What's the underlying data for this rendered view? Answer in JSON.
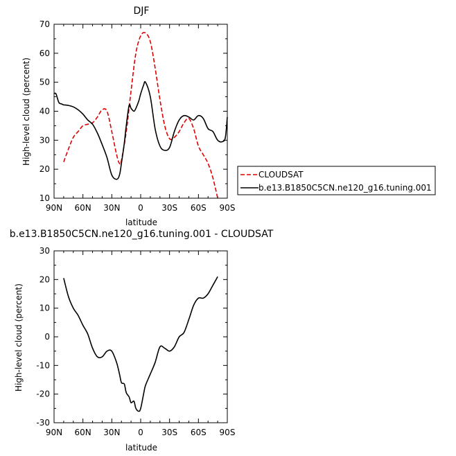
{
  "chart_data": [
    {
      "type": "line",
      "title": "DJF",
      "xlabel": "latitude",
      "ylabel": "High-level cloud (percent)",
      "xlim": [
        -90,
        90
      ],
      "ylim": [
        10,
        70
      ],
      "xticks": [
        -90,
        -60,
        -30,
        0,
        30,
        60,
        90
      ],
      "xtick_labels": [
        "90N",
        "60N",
        "30N",
        "0",
        "30S",
        "60S",
        "90S"
      ],
      "yticks": [
        10,
        20,
        30,
        40,
        50,
        60,
        70
      ],
      "ytick_labels": [
        "10",
        "20",
        "30",
        "40",
        "50",
        "60",
        "70"
      ],
      "grid": false,
      "legend_position": "right",
      "series": [
        {
          "name": "CLOUDSAT",
          "color": "#e00000",
          "dash": "dashed",
          "x": [
            -80,
            -75,
            -70,
            -65,
            -60,
            -55,
            -50,
            -45,
            -40,
            -35,
            -30,
            -25,
            -22,
            -20,
            -15,
            -10,
            -5,
            0,
            5,
            10,
            15,
            20,
            25,
            30,
            35,
            40,
            45,
            50,
            55,
            60,
            65,
            70,
            75,
            80
          ],
          "y": [
            22.5,
            27,
            31,
            33,
            35,
            35.5,
            36,
            38,
            40.5,
            40,
            33,
            25,
            22,
            23,
            33,
            47,
            60,
            66,
            67,
            64,
            55,
            44,
            35,
            30.5,
            31,
            33,
            36,
            37.5,
            34,
            28,
            25,
            22,
            17,
            10
          ]
        },
        {
          "name": "b.e13.B1850C5CN.ne120_g16.tuning.001",
          "color": "#000000",
          "dash": "solid",
          "x": [
            -90,
            -88,
            -85,
            -82,
            -80,
            -75,
            -70,
            -65,
            -60,
            -55,
            -50,
            -45,
            -40,
            -35,
            -30,
            -25,
            -22,
            -20,
            -17,
            -15,
            -12,
            -10,
            -7,
            -5,
            -2,
            0,
            3,
            5,
            10,
            15,
            20,
            25,
            30,
            35,
            40,
            45,
            50,
            55,
            60,
            65,
            70,
            75,
            80,
            85,
            88,
            90
          ],
          "y": [
            46,
            46,
            43,
            42.5,
            42.2,
            42,
            41.5,
            40.5,
            39,
            37,
            35.5,
            32.5,
            28.5,
            24,
            18,
            16.5,
            18,
            22,
            29,
            35,
            42,
            41,
            40,
            41,
            43.5,
            46,
            49,
            50,
            45,
            34,
            28,
            26.5,
            27.5,
            33,
            37,
            38.5,
            38,
            37,
            38.5,
            37.5,
            34,
            33,
            30,
            29.5,
            31,
            38
          ]
        }
      ]
    },
    {
      "type": "line",
      "title": "b.e13.B1850C5CN.ne120_g16.tuning.001 - CLOUDSAT",
      "xlabel": "latitude",
      "ylabel": "High-level cloud (percent)",
      "xlim": [
        -90,
        90
      ],
      "ylim": [
        -30,
        30
      ],
      "xticks": [
        -90,
        -60,
        -30,
        0,
        30,
        60,
        90
      ],
      "xtick_labels": [
        "90N",
        "60N",
        "30N",
        "0",
        "30S",
        "60S",
        "90S"
      ],
      "yticks": [
        -30,
        -20,
        -10,
        0,
        10,
        20,
        30
      ],
      "ytick_labels": [
        "-30",
        "-20",
        "-10",
        "0",
        "10",
        "20",
        "30"
      ],
      "grid": false,
      "series": [
        {
          "color": "#000000",
          "dash": "solid",
          "x": [
            -80,
            -75,
            -70,
            -65,
            -60,
            -55,
            -50,
            -45,
            -40,
            -35,
            -30,
            -25,
            -22,
            -20,
            -17,
            -15,
            -12,
            -10,
            -7,
            -5,
            -2,
            0,
            3,
            5,
            10,
            15,
            20,
            25,
            30,
            35,
            40,
            45,
            50,
            55,
            60,
            65,
            70,
            75,
            80
          ],
          "y": [
            20.5,
            14,
            10,
            7.5,
            4,
            1,
            -4,
            -7,
            -7,
            -5,
            -5,
            -9,
            -13,
            -16,
            -16.5,
            -19.5,
            -21,
            -23,
            -22.5,
            -25,
            -26,
            -25,
            -20,
            -17,
            -13,
            -9,
            -3.5,
            -4,
            -5,
            -3.5,
            0,
            1.5,
            6,
            11,
            13.5,
            13.5,
            15,
            18,
            21
          ]
        }
      ]
    }
  ]
}
